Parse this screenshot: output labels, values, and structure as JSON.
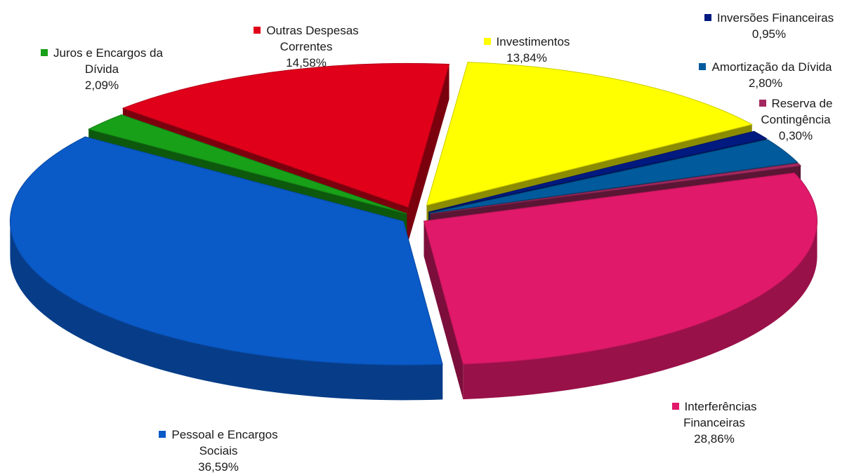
{
  "chart_data": {
    "type": "pie",
    "style": "3d-exploded",
    "slices": [
      {
        "label_lines": [
          "Investimentos"
        ],
        "value_text": "13,84%",
        "value": 13.84,
        "color": "#ffff00"
      },
      {
        "label_lines": [
          "Inversões Financeiras"
        ],
        "value_text": "0,95%",
        "value": 0.95,
        "color": "#001a80"
      },
      {
        "label_lines": [
          "Amortização da Dívida"
        ],
        "value_text": "2,80%",
        "value": 2.8,
        "color": "#005a9c"
      },
      {
        "label_lines": [
          "Reserva de",
          "Contingência"
        ],
        "value_text": "0,30%",
        "value": 0.3,
        "color": "#a3285f"
      },
      {
        "label_lines": [
          "Interferências",
          "Financeiras"
        ],
        "value_text": "28,86%",
        "value": 28.86,
        "color": "#e0196a"
      },
      {
        "label_lines": [
          "Pessoal e Encargos",
          "Sociais"
        ],
        "value_text": "36,59%",
        "value": 36.59,
        "color": "#0a5ac8"
      },
      {
        "label_lines": [
          "Juros e Encargos da",
          "Dívida"
        ],
        "value_text": "2,09%",
        "value": 2.09,
        "color": "#18a018"
      },
      {
        "label_lines": [
          "Outras Despesas",
          "Correntes"
        ],
        "value_text": "14,58%",
        "value": 14.58,
        "color": "#e0001a"
      }
    ]
  }
}
